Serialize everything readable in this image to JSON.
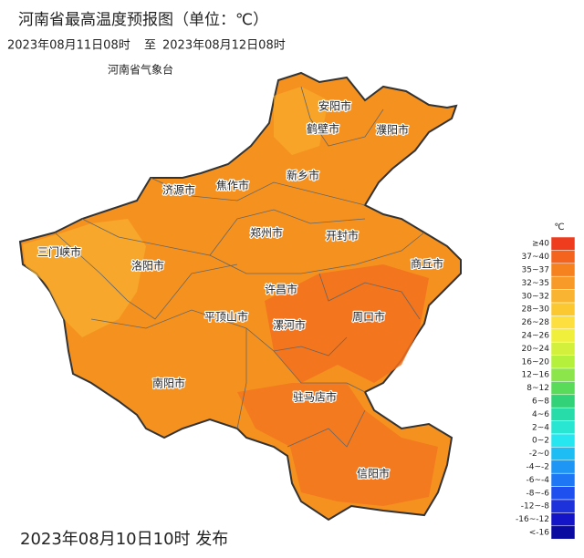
{
  "header": {
    "title": "河南省最高温度预报图（单位：℃）",
    "period_start": "2023年08月11日08时",
    "period_sep": "至",
    "period_end": "2023年08月12日08时",
    "agency": "河南省气象台"
  },
  "map": {
    "cities": [
      "安阳市",
      "鹤壁市",
      "濮阳市",
      "新乡市",
      "济源市",
      "焦作市",
      "郑州市",
      "开封市",
      "三门峡市",
      "洛阳市",
      "商丘市",
      "许昌市",
      "平顶山市",
      "漯河市",
      "周口市",
      "南阳市",
      "驻马店市",
      "信阳市"
    ]
  },
  "legend": {
    "unit": "℃",
    "items": [
      {
        "label": "≥40",
        "color": "#f03c1e"
      },
      {
        "label": "37~40",
        "color": "#f5641e"
      },
      {
        "label": "35~37",
        "color": "#f5821e"
      },
      {
        "label": "32~35",
        "color": "#f79a28"
      },
      {
        "label": "30~32",
        "color": "#f9b432"
      },
      {
        "label": "28~30",
        "color": "#fbc832"
      },
      {
        "label": "26~28",
        "color": "#fde040"
      },
      {
        "label": "24~26",
        "color": "#f0f03c"
      },
      {
        "label": "20~24",
        "color": "#d2f03c"
      },
      {
        "label": "16~20",
        "color": "#b4f03c"
      },
      {
        "label": "12~16",
        "color": "#8ce64b"
      },
      {
        "label": "8~12",
        "color": "#5adc5a"
      },
      {
        "label": "6~8",
        "color": "#32d278"
      },
      {
        "label": "4~6",
        "color": "#28dcaa"
      },
      {
        "label": "2~4",
        "color": "#28e6d2"
      },
      {
        "label": "0~2",
        "color": "#28e6f0"
      },
      {
        "label": "-2~0",
        "color": "#1ebef5"
      },
      {
        "label": "-4~-2",
        "color": "#1e96f5"
      },
      {
        "label": "-6~-4",
        "color": "#1e78f5"
      },
      {
        "label": "-8~-6",
        "color": "#1e50f0"
      },
      {
        "label": "-12~-8",
        "color": "#1e32dc"
      },
      {
        "label": "-16~-12",
        "color": "#1414c8"
      },
      {
        "label": "<-16",
        "color": "#0a0aa0"
      }
    ]
  },
  "footer": {
    "issued": "2023年08月10日10时 发布"
  }
}
